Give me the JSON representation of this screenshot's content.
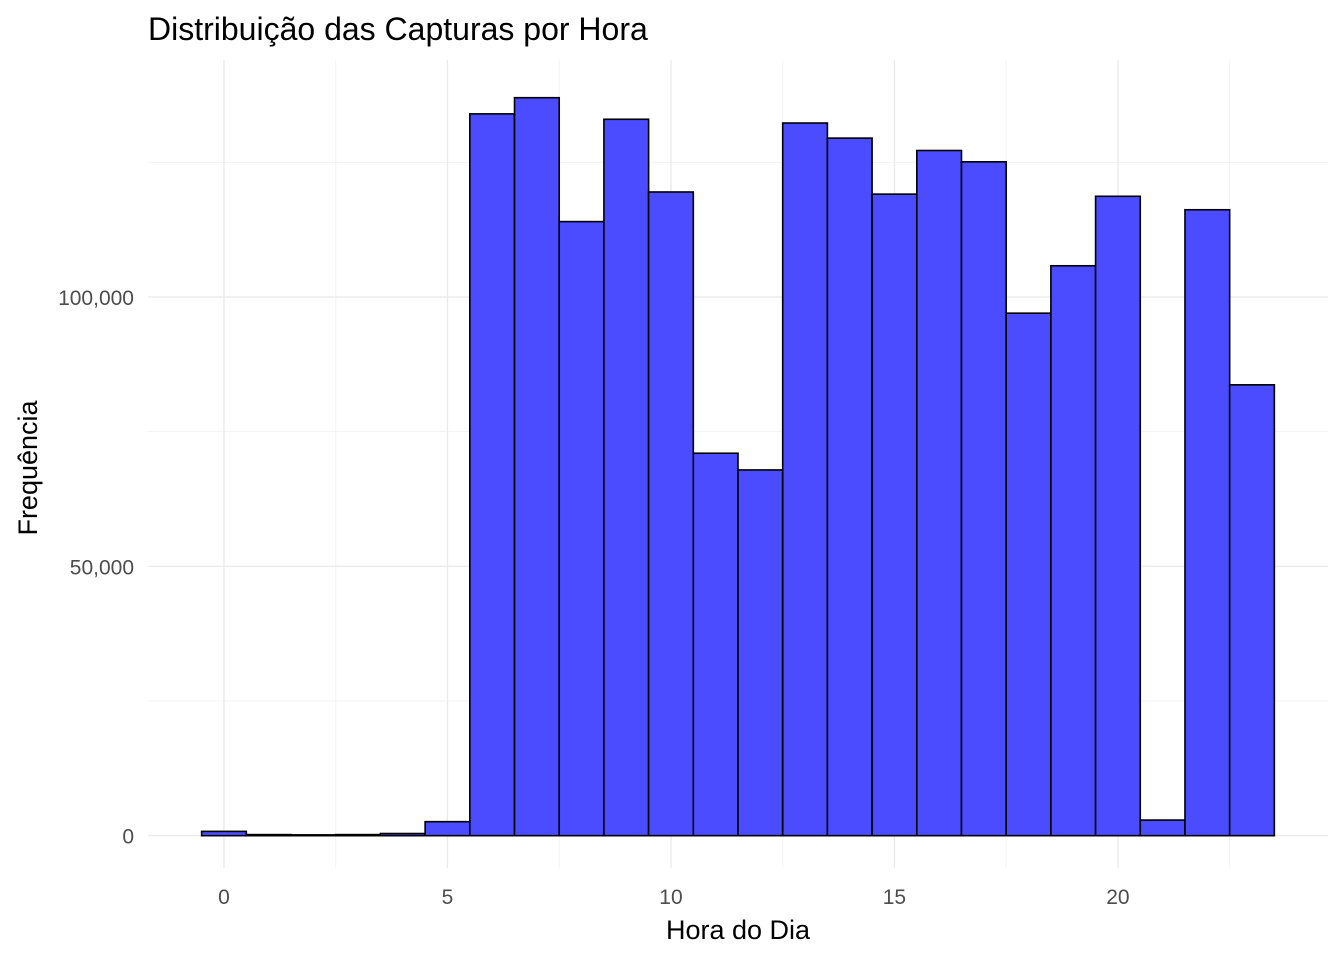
{
  "chart_data": {
    "type": "bar",
    "title": "Distribuição das Capturas por Hora",
    "xlabel": "Hora do Dia",
    "ylabel": "Frequência",
    "x": [
      0,
      1,
      2,
      3,
      4,
      5,
      6,
      7,
      8,
      9,
      10,
      11,
      12,
      13,
      14,
      15,
      16,
      17,
      18,
      19,
      20,
      21,
      22,
      23
    ],
    "values": [
      800,
      200,
      150,
      200,
      400,
      2600,
      134000,
      137000,
      114000,
      133000,
      119500,
      71000,
      67900,
      132300,
      129500,
      119100,
      127200,
      125100,
      97000,
      105800,
      118700,
      2900,
      116200,
      83700
    ],
    "xlim": [
      -1.7,
      24.7
    ],
    "ylim": [
      -6000,
      144000
    ],
    "x_ticks": [
      0,
      5,
      10,
      15,
      20
    ],
    "x_tick_labels": [
      "0",
      "5",
      "10",
      "15",
      "20"
    ],
    "y_ticks": [
      0,
      50000,
      100000
    ],
    "y_tick_labels": [
      "0",
      "50,000",
      "100,000"
    ],
    "bar_fill": "#4b4bff",
    "bar_edge": "#000000",
    "grid": true,
    "legend": "none"
  }
}
